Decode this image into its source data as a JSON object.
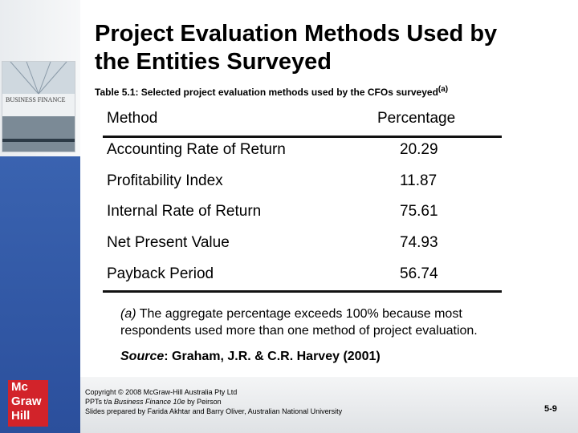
{
  "title": [
    "Project Evaluation Methods Used by",
    "the Entities Surveyed"
  ],
  "cover": {
    "title": "BUSINESS FINANCE"
  },
  "caption": {
    "text": "Table 5.1: Selected project evaluation methods used by the CFOs surveyed",
    "superscript": "(a)"
  },
  "table": {
    "columns": [
      "Method",
      "Percentage"
    ],
    "rows": [
      [
        "Accounting Rate of Return",
        "20.29"
      ],
      [
        "Profitability Index",
        "11.87"
      ],
      [
        "Internal Rate of Return",
        "75.61"
      ],
      [
        "Net Present Value",
        "74.93"
      ],
      [
        "Payback Period",
        "56.74"
      ]
    ]
  },
  "note": {
    "marker": "(a)",
    "lines": [
      " The aggregate percentage exceeds 100% because most",
      "respondents used more than one method of project evaluation."
    ]
  },
  "source": {
    "label": "Source",
    "text": ": Graham, J.R. & C.R. Harvey (2001)"
  },
  "footer": {
    "copyright": "Copyright © 2008 McGraw-Hill Australia Pty Ltd",
    "ppt_prefix": "PPTs t/a ",
    "book": "Business Finance 10e",
    "ppt_suffix": " by Peirson",
    "credits": "Slides prepared by Farida Akhtar and Barry Oliver, Australian National University",
    "page": "5-9"
  },
  "logo": [
    "Mc",
    "Graw",
    "Hill"
  ]
}
